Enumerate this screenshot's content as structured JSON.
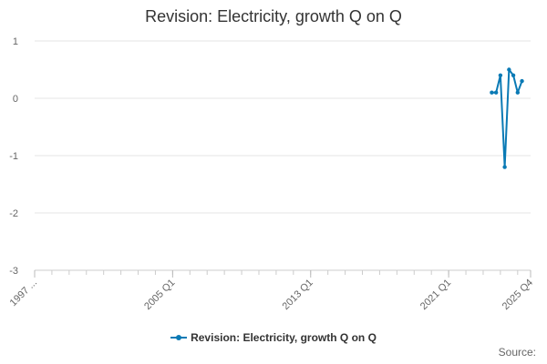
{
  "chart_data": {
    "type": "line",
    "title": "Revision: Electricity, growth Q on Q",
    "xlabel": "",
    "ylabel": "",
    "ylim": [
      -3,
      1
    ],
    "yticks": [
      "1",
      "0",
      "-1",
      "-2",
      "-3"
    ],
    "xticks": [
      "1997 ...",
      "2005 Q1",
      "2013 Q1",
      "2021 Q1",
      "2025 Q4"
    ],
    "grid": true,
    "legend_position": "bottom",
    "series": [
      {
        "name": "Revision: Electricity, growth Q on Q",
        "color": "#0a7ab5",
        "points": [
          {
            "x": "2023 Q3",
            "y": 0.1
          },
          {
            "x": "2023 Q4",
            "y": 0.1
          },
          {
            "x": "2024 Q1",
            "y": 0.4
          },
          {
            "x": "2024 Q2",
            "y": -1.2
          },
          {
            "x": "2024 Q3",
            "y": 0.5
          },
          {
            "x": "2024 Q4",
            "y": 0.4
          },
          {
            "x": "2025 Q1",
            "y": 0.1
          },
          {
            "x": "2025 Q2",
            "y": 0.3
          }
        ]
      }
    ]
  },
  "footer": {
    "source_label": "Source:"
  }
}
